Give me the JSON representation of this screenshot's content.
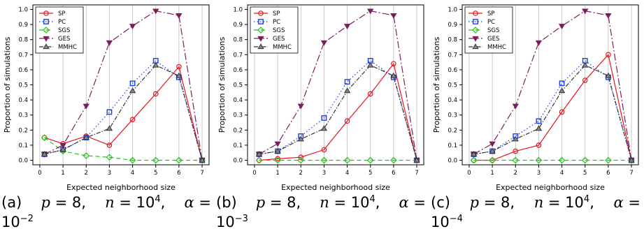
{
  "common": {
    "xlabel": "Expected neighborhood size",
    "ylabel": "Proportion of simulations"
  },
  "series_style": [
    {
      "name": "SP",
      "color": "#e8141e",
      "marker": "circle",
      "dash": ""
    },
    {
      "name": "PC",
      "color": "#1a3fe6",
      "marker": "square",
      "dash": "1.5,3"
    },
    {
      "name": "SGS",
      "color": "#22c41a",
      "marker": "diamond",
      "dash": "6,4"
    },
    {
      "name": "GES",
      "color": "#7a1f5e",
      "marker": "triangle-down",
      "dash": "10,3,2,3"
    },
    {
      "name": "MMHC",
      "color": "#333333",
      "marker": "triangle-up",
      "dash": "6,2,1.5,2"
    }
  ],
  "captions": [
    {
      "label": "(a)",
      "p": "8",
      "n": "10",
      "n_exp": "4",
      "alpha": "10",
      "alpha_exp": "−2"
    },
    {
      "label": "(b)",
      "p": "8",
      "n": "10",
      "n_exp": "4",
      "alpha": "10",
      "alpha_exp": "−3"
    },
    {
      "label": "(c)",
      "p": "8",
      "n": "10",
      "n_exp": "4",
      "alpha": "10",
      "alpha_exp": "−4"
    }
  ],
  "chart_data": [
    {
      "type": "line",
      "x": [
        0.2,
        1,
        2,
        3,
        4,
        5,
        6,
        7
      ],
      "xticks": [
        0,
        1,
        2,
        3,
        4,
        5,
        6,
        7
      ],
      "xlim": [
        -0.3,
        7.3
      ],
      "ylim": [
        -0.03,
        1.03
      ],
      "yticks": [
        0.0,
        0.1,
        0.2,
        0.3,
        0.4,
        0.5,
        0.6,
        0.7,
        0.8,
        0.9,
        1.0
      ],
      "grid": "vertical",
      "legend": "top-left",
      "xlabel": "Expected neighborhood size",
      "ylabel": "Proportion of simulations",
      "series": [
        {
          "name": "SP",
          "values": [
            0.15,
            0.11,
            0.16,
            0.1,
            0.27,
            0.44,
            0.62,
            0.0
          ]
        },
        {
          "name": "PC",
          "values": [
            0.04,
            0.07,
            0.15,
            0.32,
            0.51,
            0.66,
            0.55,
            0.0
          ]
        },
        {
          "name": "SGS",
          "values": [
            0.15,
            0.06,
            0.03,
            0.02,
            0.0,
            0.0,
            0.0,
            0.0
          ]
        },
        {
          "name": "GES",
          "values": [
            0.04,
            0.1,
            0.36,
            0.78,
            0.89,
            0.99,
            0.96,
            0.0
          ]
        },
        {
          "name": "MMHC",
          "values": [
            0.04,
            0.07,
            0.15,
            0.21,
            0.46,
            0.63,
            0.56,
            0.0
          ]
        }
      ]
    },
    {
      "type": "line",
      "x": [
        0.2,
        1,
        2,
        3,
        4,
        5,
        6,
        7
      ],
      "xticks": [
        0,
        1,
        2,
        3,
        4,
        5,
        6,
        7
      ],
      "xlim": [
        -0.3,
        7.3
      ],
      "ylim": [
        -0.03,
        1.03
      ],
      "yticks": [
        0.0,
        0.1,
        0.2,
        0.3,
        0.4,
        0.5,
        0.6,
        0.7,
        0.8,
        0.9,
        1.0
      ],
      "grid": "vertical",
      "legend": "top-left",
      "xlabel": "Expected neighborhood size",
      "ylabel": "Proportion of simulations",
      "series": [
        {
          "name": "SP",
          "values": [
            0.0,
            0.01,
            0.02,
            0.07,
            0.26,
            0.44,
            0.64,
            0.0
          ]
        },
        {
          "name": "PC",
          "values": [
            0.04,
            0.06,
            0.16,
            0.28,
            0.52,
            0.66,
            0.55,
            0.0
          ]
        },
        {
          "name": "SGS",
          "values": [
            0.0,
            0.0,
            0.0,
            0.0,
            0.0,
            0.0,
            0.0,
            0.0
          ]
        },
        {
          "name": "GES",
          "values": [
            0.04,
            0.11,
            0.36,
            0.78,
            0.89,
            0.99,
            0.96,
            0.0
          ]
        },
        {
          "name": "MMHC",
          "values": [
            0.04,
            0.06,
            0.14,
            0.21,
            0.46,
            0.63,
            0.56,
            0.0
          ]
        }
      ]
    },
    {
      "type": "line",
      "x": [
        0.2,
        1,
        2,
        3,
        4,
        5,
        6,
        7
      ],
      "xticks": [
        0,
        1,
        2,
        3,
        4,
        5,
        6,
        7
      ],
      "xlim": [
        -0.3,
        7.3
      ],
      "ylim": [
        -0.03,
        1.03
      ],
      "yticks": [
        0.0,
        0.1,
        0.2,
        0.3,
        0.4,
        0.5,
        0.6,
        0.7,
        0.8,
        0.9,
        1.0
      ],
      "grid": "vertical",
      "legend": "top-left",
      "xlabel": "Expected neighborhood size",
      "ylabel": "Proportion of simulations",
      "series": [
        {
          "name": "SP",
          "values": [
            0.0,
            0.0,
            0.06,
            0.1,
            0.32,
            0.53,
            0.7,
            0.0
          ]
        },
        {
          "name": "PC",
          "values": [
            0.04,
            0.06,
            0.16,
            0.26,
            0.51,
            0.66,
            0.55,
            0.0
          ]
        },
        {
          "name": "SGS",
          "values": [
            0.0,
            0.0,
            0.0,
            0.0,
            0.0,
            0.0,
            0.0,
            0.0
          ]
        },
        {
          "name": "GES",
          "values": [
            0.04,
            0.11,
            0.36,
            0.78,
            0.89,
            0.99,
            0.96,
            0.0
          ]
        },
        {
          "name": "MMHC",
          "values": [
            0.04,
            0.06,
            0.14,
            0.21,
            0.46,
            0.63,
            0.56,
            0.0
          ]
        }
      ]
    }
  ]
}
